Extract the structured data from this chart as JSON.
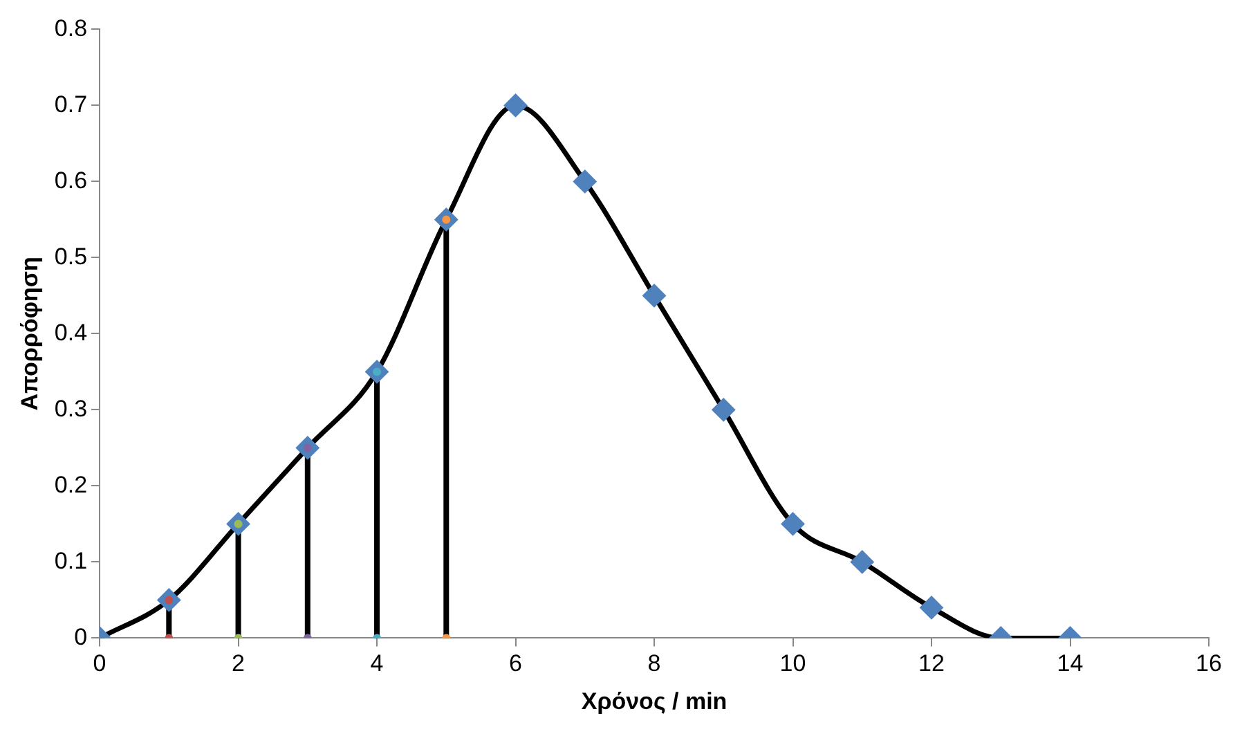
{
  "chart_data": {
    "type": "line",
    "xlabel": "Χρόνος / min",
    "ylabel": "Απορρόφηση",
    "xlim": [
      0,
      16
    ],
    "xticks": [
      0,
      2,
      4,
      6,
      8,
      10,
      12,
      14,
      16
    ],
    "ylim": [
      0,
      0.8
    ],
    "yticks": [
      0,
      0.1,
      0.2,
      0.3,
      0.4,
      0.5,
      0.6,
      0.7,
      0.8
    ],
    "grid": false,
    "legend": false,
    "series": [
      {
        "color": "#000000",
        "marker": "none",
        "x": [
          0,
          1,
          2,
          3,
          4,
          5,
          6,
          7,
          8,
          9,
          10,
          11,
          12,
          13,
          14
        ],
        "values": [
          0,
          0.05,
          0.15,
          0.25,
          0.35,
          0.55,
          0.7,
          0.6,
          0.45,
          0.3,
          0.15,
          0.1,
          0.04,
          0,
          0
        ]
      },
      {
        "type": "line",
        "color": "#000000",
        "marker": "none",
        "x": [
          1,
          1
        ],
        "values": [
          0,
          0.05
        ]
      },
      {
        "type": "line",
        "color": "#000000",
        "marker": "none",
        "x": [
          2,
          2
        ],
        "values": [
          0,
          0.15
        ]
      },
      {
        "type": "line",
        "color": "#000000",
        "marker": "none",
        "x": [
          3,
          3
        ],
        "values": [
          0,
          0.25
        ]
      },
      {
        "type": "line",
        "color": "#000000",
        "marker": "none",
        "x": [
          4,
          4
        ],
        "values": [
          0,
          0.35
        ]
      },
      {
        "type": "line",
        "color": "#000000",
        "marker": "none",
        "x": [
          5,
          5
        ],
        "values": [
          0,
          0.55
        ]
      },
      {
        "type": "scatter",
        "color": "#4f81bd",
        "marker": "diamond",
        "x": [
          0,
          1,
          2,
          3,
          4,
          5,
          6,
          7,
          8,
          9,
          10,
          11,
          12,
          13,
          14
        ],
        "values": [
          0,
          0.05,
          0.15,
          0.25,
          0.35,
          0.55,
          0.7,
          0.6,
          0.45,
          0.3,
          0.15,
          0.1,
          0.04,
          0,
          0
        ]
      },
      {
        "type": "scatter",
        "colors": [
          "#c0504d",
          "#c0504d",
          "#9bbb59",
          "#9bbb59",
          "#8064a2",
          "#8064a2",
          "#4bacc6",
          "#4bacc6",
          "#f79646",
          "#f79646"
        ],
        "marker": "circle",
        "x": [
          1,
          1,
          2,
          2,
          3,
          3,
          4,
          4,
          5,
          5
        ],
        "values": [
          0,
          0.05,
          0,
          0.15,
          0,
          0.25,
          0,
          0.35,
          0,
          0.55
        ]
      }
    ]
  }
}
